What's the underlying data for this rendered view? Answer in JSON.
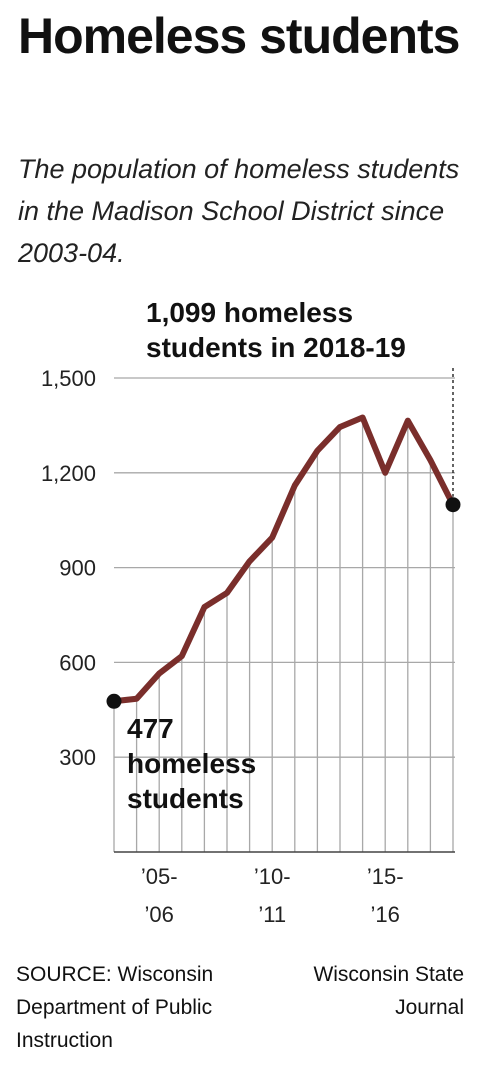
{
  "header": {
    "title": "Homeless students",
    "subtitle": "The population of homeless students in the Madison School District since 2003-04."
  },
  "footer": {
    "source": "SOURCE: Wisconsin Department of Public Instruction",
    "credit": "Wisconsin State Journal"
  },
  "chart_data": {
    "type": "line",
    "title": "Homeless students",
    "subtitle": "The population of homeless students in the Madison School District since 2003-04.",
    "xlabel": "",
    "ylabel": "",
    "ylim": [
      0,
      1500
    ],
    "yticks": [
      300,
      600,
      900,
      1200,
      1500
    ],
    "ytick_labels": [
      "300",
      "600",
      "900",
      "1,200",
      "1,500"
    ],
    "grid": "horizontal and vertical",
    "x_tick_labels": [
      {
        "year": "2005-06",
        "line1": "’05-",
        "line2": "’06"
      },
      {
        "year": "2010-11",
        "line1": "’10-",
        "line2": "’11"
      },
      {
        "year": "2015-16",
        "line1": "’15-",
        "line2": "’16"
      }
    ],
    "series": [
      {
        "color": "#7a2e2b",
        "x": [
          "2003-04",
          "2004-05",
          "2005-06",
          "2006-07",
          "2007-08",
          "2008-09",
          "2009-10",
          "2010-11",
          "2011-12",
          "2012-13",
          "2013-14",
          "2014-15",
          "2015-16",
          "2016-17",
          "2017-18",
          "2018-19"
        ],
        "values": [
          477,
          485,
          565,
          620,
          775,
          820,
          920,
          995,
          1160,
          1270,
          1345,
          1375,
          1200,
          1365,
          1240,
          1099
        ]
      }
    ],
    "annotations": [
      {
        "text_lines": [
          "477",
          "homeless",
          "students"
        ],
        "x": "2003-04",
        "y": 477
      },
      {
        "text_lines": [
          "1,099 homeless",
          "students in 2018-19"
        ],
        "x": "2018-19",
        "y": 1099
      }
    ]
  }
}
